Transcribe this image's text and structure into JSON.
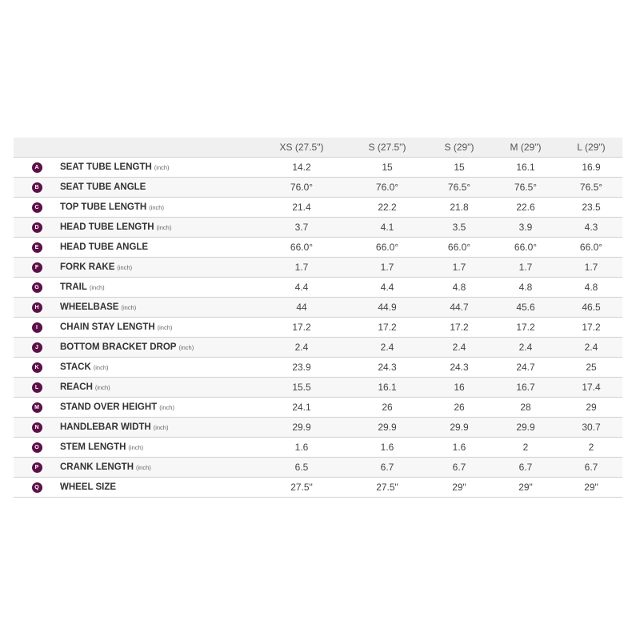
{
  "columns": [
    "XS (27.5\")",
    "S (27.5\")",
    "S (29\")",
    "M (29\")",
    "L (29\")"
  ],
  "badge_color": "#5c1048",
  "rows": [
    {
      "letter": "A",
      "label": "SEAT TUBE LENGTH",
      "unit": "(inch)",
      "values": [
        "14.2",
        "15",
        "15",
        "16.1",
        "16.9"
      ]
    },
    {
      "letter": "B",
      "label": "SEAT TUBE ANGLE",
      "unit": "",
      "values": [
        "76.0°",
        "76.0°",
        "76.5°",
        "76.5°",
        "76.5°"
      ]
    },
    {
      "letter": "C",
      "label": "TOP TUBE LENGTH",
      "unit": "(inch)",
      "values": [
        "21.4",
        "22.2",
        "21.8",
        "22.6",
        "23.5"
      ]
    },
    {
      "letter": "D",
      "label": "HEAD TUBE LENGTH",
      "unit": "(inch)",
      "values": [
        "3.7",
        "4.1",
        "3.5",
        "3.9",
        "4.3"
      ]
    },
    {
      "letter": "E",
      "label": "HEAD TUBE ANGLE",
      "unit": "",
      "values": [
        "66.0°",
        "66.0°",
        "66.0°",
        "66.0°",
        "66.0°"
      ]
    },
    {
      "letter": "F",
      "label": "FORK RAKE",
      "unit": "(inch)",
      "values": [
        "1.7",
        "1.7",
        "1.7",
        "1.7",
        "1.7"
      ]
    },
    {
      "letter": "G",
      "label": "TRAIL",
      "unit": "(inch)",
      "values": [
        "4.4",
        "4.4",
        "4.8",
        "4.8",
        "4.8"
      ]
    },
    {
      "letter": "H",
      "label": "WHEELBASE",
      "unit": "(inch)",
      "values": [
        "44",
        "44.9",
        "44.7",
        "45.6",
        "46.5"
      ]
    },
    {
      "letter": "I",
      "label": "CHAIN STAY LENGTH",
      "unit": "(inch)",
      "values": [
        "17.2",
        "17.2",
        "17.2",
        "17.2",
        "17.2"
      ]
    },
    {
      "letter": "J",
      "label": "BOTTOM BRACKET DROP",
      "unit": "(inch)",
      "values": [
        "2.4",
        "2.4",
        "2.4",
        "2.4",
        "2.4"
      ]
    },
    {
      "letter": "K",
      "label": "STACK",
      "unit": "(inch)",
      "values": [
        "23.9",
        "24.3",
        "24.3",
        "24.7",
        "25"
      ]
    },
    {
      "letter": "L",
      "label": "REACH",
      "unit": "(inch)",
      "values": [
        "15.5",
        "16.1",
        "16",
        "16.7",
        "17.4"
      ]
    },
    {
      "letter": "M",
      "label": "STAND OVER HEIGHT",
      "unit": "(inch)",
      "values": [
        "24.1",
        "26",
        "26",
        "28",
        "29"
      ]
    },
    {
      "letter": "N",
      "label": "HANDLEBAR WIDTH",
      "unit": "(inch)",
      "values": [
        "29.9",
        "29.9",
        "29.9",
        "29.9",
        "30.7"
      ]
    },
    {
      "letter": "O",
      "label": "STEM LENGTH",
      "unit": "(inch)",
      "values": [
        "1.6",
        "1.6",
        "1.6",
        "2",
        "2"
      ]
    },
    {
      "letter": "P",
      "label": "CRANK LENGTH",
      "unit": "(inch)",
      "values": [
        "6.5",
        "6.7",
        "6.7",
        "6.7",
        "6.7"
      ]
    },
    {
      "letter": "Q",
      "label": "WHEEL SIZE",
      "unit": "",
      "values": [
        "27.5\"",
        "27.5\"",
        "29\"",
        "29\"",
        "29\""
      ]
    }
  ]
}
